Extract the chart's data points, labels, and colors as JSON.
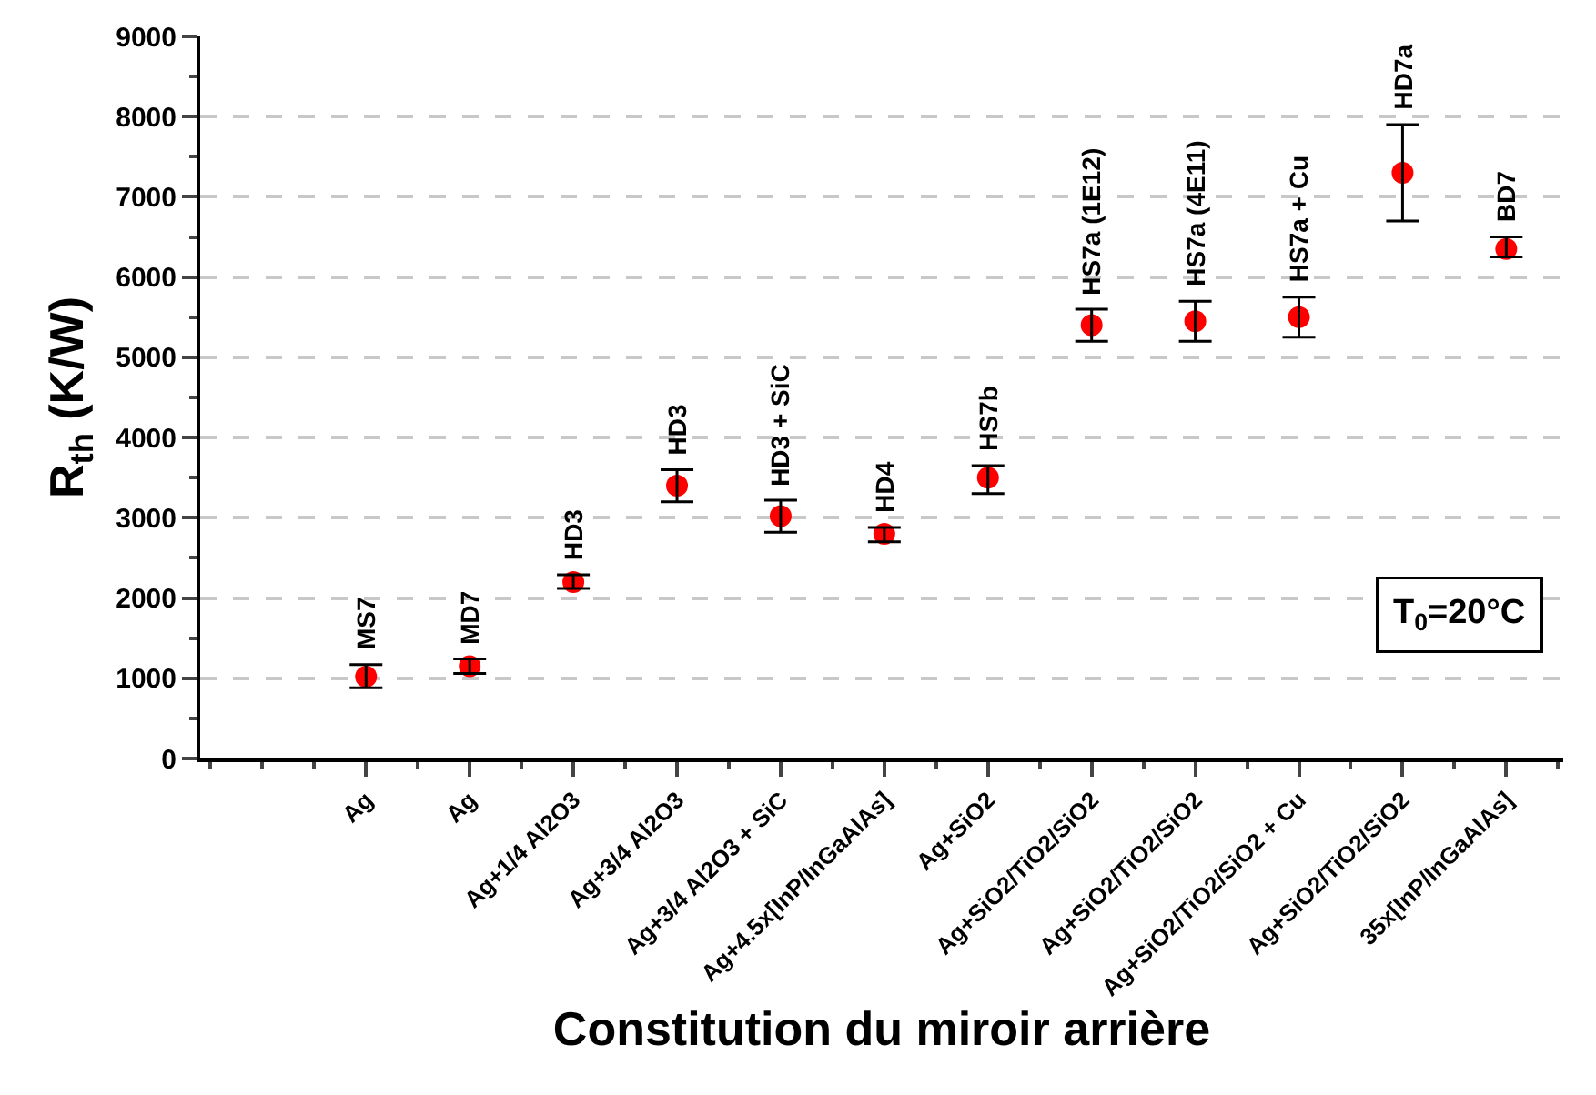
{
  "chart_data": {
    "type": "scatter",
    "xlabel": "Constitution du miroir arrière",
    "ylabel": "R$_{th}$ (K/W)",
    "categories": [
      "Ag",
      "Ag",
      "Ag+1/4 Al2O3",
      "Ag+3/4 Al2O3",
      "Ag+3/4 Al2O3 + SiC",
      "Ag+4.5x[InP/InGaAlAs]",
      "Ag+SiO2",
      "Ag+SiO2/TiO2/SiO2",
      "Ag+SiO2/TiO2/SiO2",
      "Ag+SiO2/TiO2/SiO2 + Cu",
      "Ag+SiO2/TiO2/SiO2",
      "35x[InP/InGaAlAs]"
    ],
    "series": [
      {
        "color": "#ff0000",
        "values": [
          1020,
          1150,
          2200,
          3400,
          3020,
          2800,
          3500,
          5400,
          5450,
          5500,
          7300,
          6350
        ],
        "errors": [
          [
            880,
            1170
          ],
          [
            1060,
            1240
          ],
          [
            2120,
            2290
          ],
          [
            3200,
            3600
          ],
          [
            2820,
            3220
          ],
          [
            2700,
            2880
          ],
          [
            3300,
            3650
          ],
          [
            5200,
            5600
          ],
          [
            5200,
            5700
          ],
          [
            5250,
            5750
          ],
          [
            6700,
            7900
          ],
          [
            6250,
            6500
          ]
        ],
        "value_labels": [
          "MS7",
          "MD7",
          "HD3",
          "HD3",
          "HD3 + SiC",
          "HD4",
          "HS7b",
          "HS7a (1E12)",
          "HS7a (4E11)",
          "HS7a + Cu",
          "HD7a",
          "BD7"
        ]
      }
    ],
    "annotations": [
      "T$_{0}$=20°C"
    ],
    "ylim": [
      0,
      9000
    ],
    "yticks": [
      0,
      1000,
      2000,
      3000,
      4000,
      5000,
      6000,
      7000,
      8000,
      9000
    ],
    "grid": "y",
    "marker": "circle"
  }
}
